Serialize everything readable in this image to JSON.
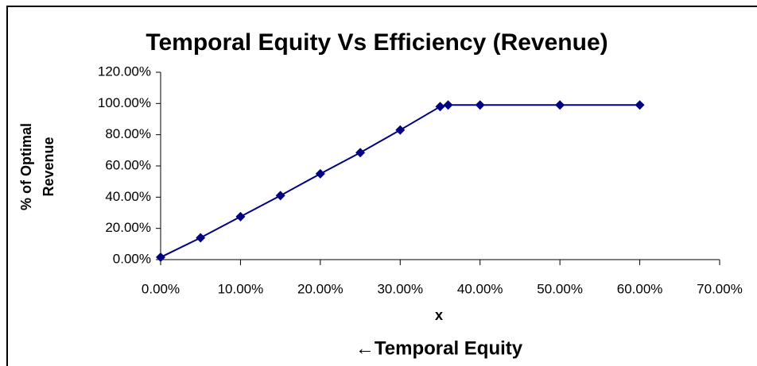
{
  "chart_data": {
    "type": "line",
    "title": "Temporal Equity Vs Efficiency (Revenue)",
    "ylabel": [
      "% of Optimal",
      "Revenue"
    ],
    "xlabel": "x",
    "annotation": "←Temporal Equity",
    "x": [
      0,
      5,
      10,
      15,
      20,
      25,
      30,
      35,
      36,
      40,
      50,
      60
    ],
    "series": [
      {
        "name": "Revenue",
        "color": "#000080",
        "values": [
          1.5,
          14,
          27.5,
          41,
          55,
          68.5,
          83,
          98,
          99,
          99,
          99,
          99
        ]
      }
    ],
    "xlim": [
      0,
      70
    ],
    "xticks": [
      {
        "value": 0,
        "label": "0.00%"
      },
      {
        "value": 10,
        "label": "10.00%"
      },
      {
        "value": 20,
        "label": "20.00%"
      },
      {
        "value": 30,
        "label": "30.00%"
      },
      {
        "value": 40,
        "label": "40.00%"
      },
      {
        "value": 50,
        "label": "50.00%"
      },
      {
        "value": 60,
        "label": "60.00%"
      },
      {
        "value": 70,
        "label": "70.00%"
      }
    ],
    "ylim": [
      0,
      120
    ],
    "yticks": [
      {
        "value": 0,
        "label": "0.00%"
      },
      {
        "value": 20,
        "label": "20.00%"
      },
      {
        "value": 40,
        "label": "40.00%"
      },
      {
        "value": 60,
        "label": "60.00%"
      },
      {
        "value": 80,
        "label": "80.00%"
      },
      {
        "value": 100,
        "label": "100.00%"
      },
      {
        "value": 120,
        "label": "120.00%"
      }
    ],
    "grid": false
  }
}
